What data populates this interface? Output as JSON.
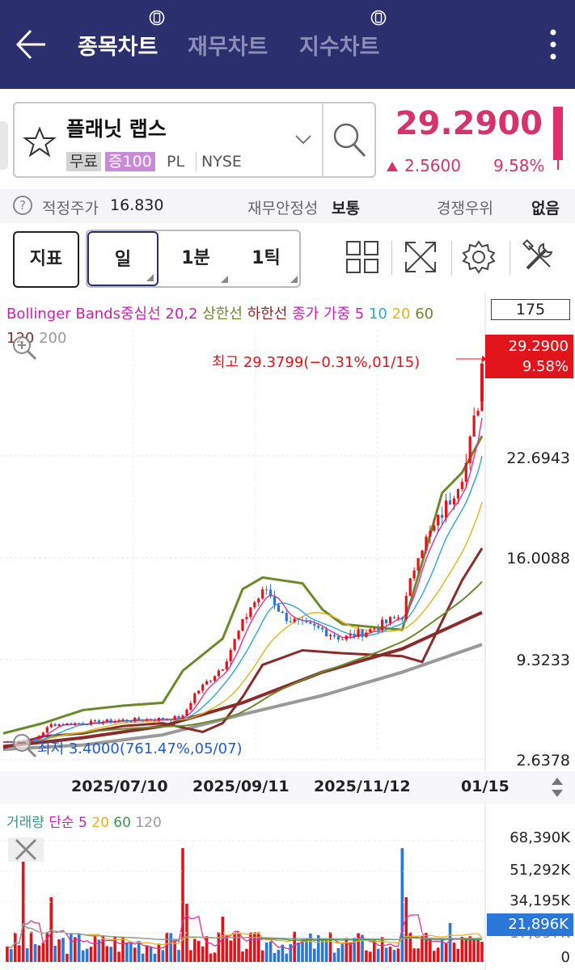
{
  "header": {
    "tabs": [
      {
        "label": "종목차트",
        "active": true
      },
      {
        "label": "재무차트",
        "active": false
      },
      {
        "label": "지수차트",
        "active": false
      }
    ]
  },
  "stock": {
    "name": "플래닛 랩스",
    "tag_free": "무료",
    "tag_margin": "증100",
    "ticker": "PL",
    "exchange": "NYSE",
    "price": "29.2900",
    "change": "2.5600",
    "change_pct": "9.58%"
  },
  "info": {
    "fair_price_label": "적정주가",
    "fair_price_value": "16.830",
    "stability_label": "재무안정성",
    "stability_value": "보통",
    "competitive_label": "경쟁우위",
    "competitive_value": "없음"
  },
  "controls": {
    "indicator_label": "지표",
    "periods": [
      "일",
      "1분",
      "1틱"
    ],
    "period_count": "175"
  },
  "legend": {
    "boll_name": "Bollinger Bands",
    "boll_mid": "중심선 20,2",
    "boll_upper": "상한선",
    "boll_lower": "하한선",
    "ma_name": "종가 가중",
    "ma_periods": [
      "5",
      "10",
      "20",
      "60",
      "120",
      "200"
    ]
  },
  "colors": {
    "header_bg": "#2b2f6e",
    "up": "#e2141b",
    "down": "#2b77d8",
    "ma5": "#e0309a",
    "ma10": "#2aa6d8",
    "ma20": "#e8b21a",
    "ma60": "#2e9d44",
    "ma120": "#8b2c2c",
    "ma200": "#999999"
  },
  "chart_data": {
    "type": "candlestick",
    "y_ticks": [
      "22.6943",
      "16.0088",
      "9.3233",
      "2.6378"
    ],
    "x_ticks": [
      "2025/07/10",
      "2025/09/11",
      "2025/11/12",
      "01/15"
    ],
    "current": {
      "price": "29.2900",
      "pct": "9.58%"
    },
    "high_label": "최고 29.3799(−0.31%,01/15)",
    "low_label": "최저 3.4000(761.47%,05/07)",
    "ylim": [
      2.6378,
      29.3799
    ],
    "series": [
      {
        "name": "Bollinger 상한선",
        "points": [
          [
            0,
            3.9
          ],
          [
            10,
            4.6
          ],
          [
            20,
            5.5
          ],
          [
            30,
            5.8
          ],
          [
            40,
            6.0
          ],
          [
            45,
            8.2
          ],
          [
            55,
            10.4
          ],
          [
            60,
            13.8
          ],
          [
            65,
            14.6
          ],
          [
            75,
            14.2
          ],
          [
            80,
            12.4
          ],
          [
            85,
            11.4
          ],
          [
            100,
            11.0
          ],
          [
            105,
            15.6
          ],
          [
            110,
            20.4
          ],
          [
            115,
            21.8
          ],
          [
            120,
            24.3
          ]
        ]
      },
      {
        "name": "Bollinger 하한선",
        "points": [
          [
            0,
            2.9
          ],
          [
            10,
            3.7
          ],
          [
            20,
            3.9
          ],
          [
            30,
            4.4
          ],
          [
            40,
            4.6
          ],
          [
            50,
            4.0
          ],
          [
            55,
            4.6
          ],
          [
            60,
            6.4
          ],
          [
            65,
            8.6
          ],
          [
            75,
            9.6
          ],
          [
            85,
            9.4
          ],
          [
            100,
            9.2
          ],
          [
            105,
            8.8
          ],
          [
            110,
            11.6
          ],
          [
            115,
            14.4
          ],
          [
            120,
            16.6
          ]
        ]
      },
      {
        "name": "MA120",
        "points": [
          [
            0,
            3.0
          ],
          [
            20,
            3.6
          ],
          [
            40,
            4.4
          ],
          [
            60,
            6.0
          ],
          [
            80,
            8.1
          ],
          [
            100,
            9.7
          ],
          [
            120,
            12.2
          ]
        ]
      },
      {
        "name": "MA200",
        "points": [
          [
            0,
            2.8
          ],
          [
            20,
            3.1
          ],
          [
            40,
            3.8
          ],
          [
            60,
            5.2
          ],
          [
            80,
            6.5
          ],
          [
            100,
            8.1
          ],
          [
            120,
            10.0
          ]
        ]
      }
    ],
    "volume": {
      "y_ticks": [
        "68,390K",
        "51,292K",
        "34,195K",
        "17,097K",
        "0"
      ],
      "current": "21,896K",
      "legend_name": "거래량",
      "legend_type": "단순",
      "periods": [
        "5",
        "20",
        "60",
        "120"
      ]
    }
  }
}
